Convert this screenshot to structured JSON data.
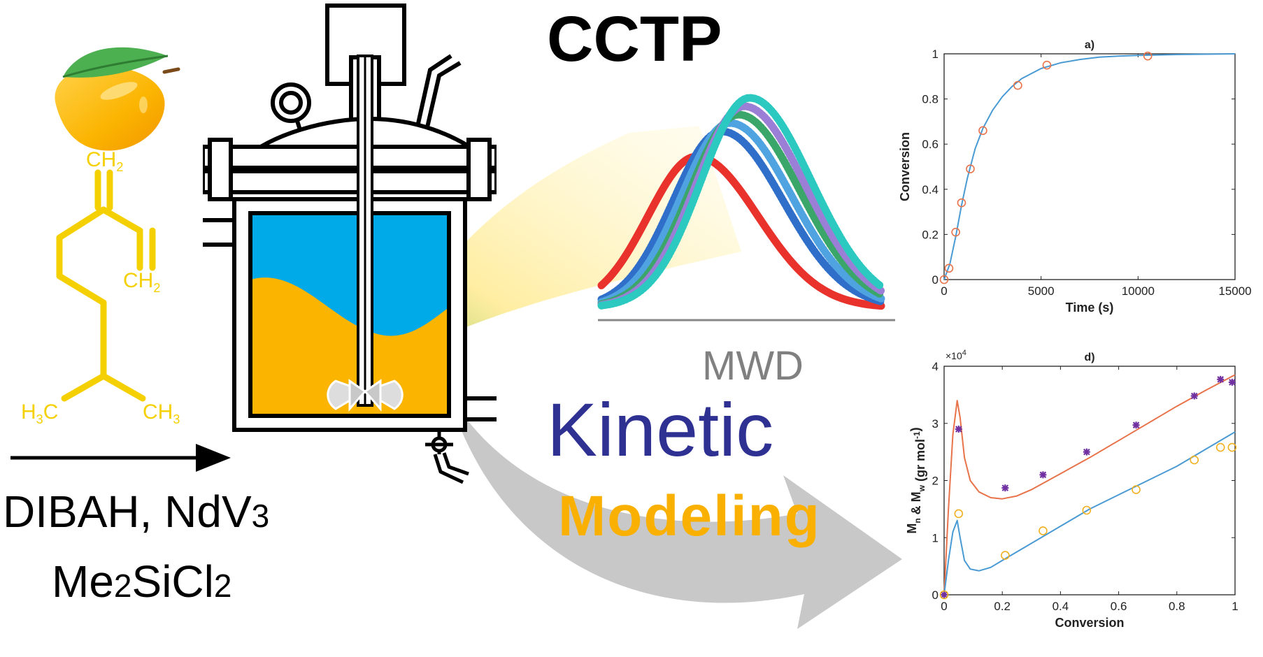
{
  "title": "CCTP",
  "reagents": {
    "line1": {
      "a": "DIBAH, NdV",
      "b": "3"
    },
    "line2": {
      "a": "Me",
      "b": "2",
      "c": "SiCl",
      "d": "2"
    }
  },
  "monomer": {
    "ch2_top": {
      "a": "CH",
      "b": "2"
    },
    "ch2_mid": {
      "a": "CH",
      "b": "2"
    },
    "h3c": {
      "a": "H",
      "b": "3",
      "c": "C"
    },
    "ch3": {
      "a": "CH",
      "b": "3"
    }
  },
  "mwd_label": "MWD",
  "kinetic_label": "Kinetic",
  "modeling_label": "Modeling",
  "colors": {
    "monomer": "#f5d000",
    "kinetic": "#2e3192",
    "modeling": "#f9b000",
    "reactor_blue": "#00a9e8",
    "reactor_orange": "#fbb400"
  },
  "chart_data": [
    {
      "type": "scatter",
      "title": "a)",
      "xlabel": "Time (s)",
      "ylabel": "Conversion",
      "xlim": [
        0,
        15000
      ],
      "ylim": [
        0,
        1
      ],
      "xticks": [
        "0",
        "5000",
        "10000",
        "15000"
      ],
      "yticks": [
        "0",
        "0.2",
        "0.4",
        "0.6",
        "0.8",
        "1"
      ],
      "series": [
        {
          "kind": "markers",
          "marker": "circle",
          "color": "#e8734a",
          "x": [
            0,
            250,
            600,
            900,
            1350,
            2000,
            3800,
            5300,
            10500
          ],
          "y": [
            0,
            0.05,
            0.21,
            0.34,
            0.49,
            0.66,
            0.86,
            0.95,
            0.99
          ]
        },
        {
          "kind": "line",
          "color": "#4a9ad4",
          "x": [
            0,
            300,
            600,
            900,
            1200,
            1600,
            2000,
            2500,
            3000,
            3500,
            4000,
            5000,
            6000,
            7000,
            8000,
            9000,
            10000,
            12000,
            15000
          ],
          "y": [
            0,
            0.07,
            0.19,
            0.33,
            0.45,
            0.58,
            0.67,
            0.75,
            0.81,
            0.855,
            0.89,
            0.935,
            0.96,
            0.975,
            0.985,
            0.99,
            0.993,
            0.997,
            1.0
          ]
        }
      ]
    },
    {
      "type": "scatter",
      "title": "d)",
      "xlabel": "Conversion",
      "ylabel_parts": {
        "a": "M",
        "b": "n",
        "c": " & M",
        "d": "w",
        "e": " (gr mol",
        "f": "-1",
        "g": ")"
      },
      "multiplier": {
        "a": "×10",
        "b": "4"
      },
      "xlim": [
        0,
        1
      ],
      "ylim": [
        0,
        40000
      ],
      "xticks": [
        "0",
        "0.2",
        "0.4",
        "0.6",
        "0.8",
        "1"
      ],
      "yticks": [
        "0",
        "1",
        "2",
        "3",
        "4"
      ],
      "series": [
        {
          "kind": "markers",
          "marker": "star",
          "color": "#7030a0",
          "x": [
            0,
            0.05,
            0.21,
            0.34,
            0.49,
            0.66,
            0.86,
            0.95,
            0.99
          ],
          "y": [
            0,
            29000,
            18700,
            21000,
            25000,
            29700,
            34800,
            37700,
            37200
          ]
        },
        {
          "kind": "markers",
          "marker": "circle",
          "color": "#f0b020",
          "x": [
            0,
            0.05,
            0.21,
            0.34,
            0.49,
            0.66,
            0.86,
            0.95,
            0.99
          ],
          "y": [
            0,
            14200,
            6900,
            11200,
            14800,
            18400,
            23600,
            25800,
            25800
          ]
        },
        {
          "kind": "line",
          "color": "#e8734a",
          "x": [
            0,
            0.015,
            0.03,
            0.045,
            0.055,
            0.07,
            0.09,
            0.12,
            0.16,
            0.2,
            0.25,
            0.3,
            0.4,
            0.5,
            0.6,
            0.7,
            0.8,
            0.9,
            1.0
          ],
          "y": [
            0,
            15000,
            28000,
            34000,
            31000,
            24000,
            20000,
            18000,
            17000,
            16800,
            17300,
            18400,
            21200,
            24000,
            27000,
            30000,
            33000,
            35800,
            38500
          ]
        },
        {
          "kind": "line",
          "color": "#4a9ad4",
          "x": [
            0,
            0.015,
            0.03,
            0.045,
            0.055,
            0.07,
            0.09,
            0.12,
            0.16,
            0.2,
            0.3,
            0.4,
            0.5,
            0.6,
            0.7,
            0.8,
            0.9,
            1.0
          ],
          "y": [
            0,
            6000,
            11000,
            13000,
            10000,
            6000,
            4500,
            4200,
            4800,
            6000,
            9000,
            12000,
            15000,
            17500,
            20000,
            22500,
            25500,
            28500
          ]
        }
      ]
    }
  ],
  "mwd_chart": {
    "type": "line",
    "note": "six molecular weight distribution curves",
    "series": [
      {
        "color": "#e8322b",
        "peak_x": 0.34,
        "width": 0.19,
        "height": 0.72
      },
      {
        "color": "#2f6fc9",
        "peak_x": 0.43,
        "width": 0.19,
        "height": 0.84
      },
      {
        "color": "#4fa3e0",
        "peak_x": 0.46,
        "width": 0.19,
        "height": 0.88
      },
      {
        "color": "#3aa66a",
        "peak_x": 0.49,
        "width": 0.19,
        "height": 0.92
      },
      {
        "color": "#9b7fd6",
        "peak_x": 0.51,
        "width": 0.19,
        "height": 0.96
      },
      {
        "color": "#2cc9c0",
        "peak_x": 0.53,
        "width": 0.19,
        "height": 1.0
      }
    ]
  }
}
